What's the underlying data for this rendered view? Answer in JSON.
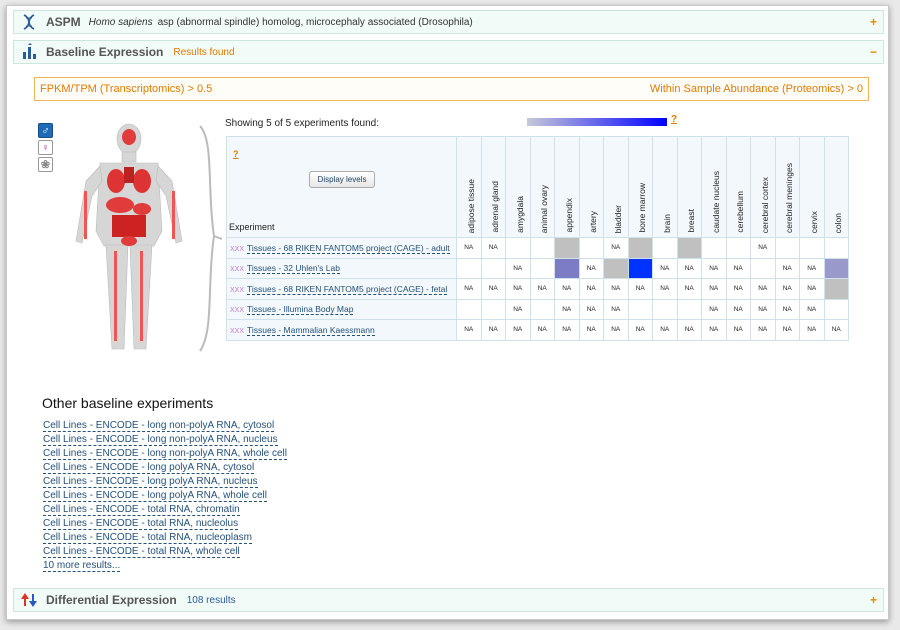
{
  "gene_header": {
    "gene": "ASPM",
    "species": "Homo sapiens",
    "description": "asp (abnormal spindle) homolog, microcephaly associated (Drosophila)",
    "toggle": "+"
  },
  "baseline_header": {
    "title": "Baseline Expression",
    "status": "Results found",
    "toggle": "−"
  },
  "filters": {
    "left": "FPKM/TPM (Transcriptomics) > 0.5",
    "right": "Within Sample Abundance (Proteomics) > 0"
  },
  "gender_buttons": {
    "male": "♂",
    "female": "♀",
    "brain": "❀"
  },
  "showing_text": "Showing 5 of 5 experiments found:",
  "gradient_help": "?",
  "heatmap": {
    "help": "?",
    "display_levels": "Display levels",
    "experiment_label": "Experiment",
    "columns": [
      "adipose tissue",
      "adrenal gland",
      "amygdala",
      "animal ovary",
      "appendix",
      "artery",
      "bladder",
      "bone marrow",
      "brain",
      "breast",
      "caudate nucleus",
      "cerebellum",
      "cerebral cortex",
      "cerebral meninges",
      "cervix",
      "colon"
    ],
    "rows": [
      {
        "marker": "XXX",
        "label": "Tissues - 68 RIKEN FANTOM5 project (CAGE) - adult",
        "cells": [
          "NA",
          "NA",
          "",
          "",
          "gray",
          "",
          "NA",
          "gray",
          "",
          "gray",
          "",
          "",
          "NA",
          "",
          "",
          ""
        ]
      },
      {
        "marker": "XXX",
        "label": "Tissues - 32 Uhlen's Lab",
        "cells": [
          "",
          "",
          "NA",
          "",
          "purple",
          "NA",
          "gray",
          "blue",
          "NA",
          "NA",
          "NA",
          "NA",
          "",
          "NA",
          "NA",
          "lavender"
        ]
      },
      {
        "marker": "XXX",
        "label": "Tissues - 68 RIKEN FANTOM5 project (CAGE) - fetal",
        "cells": [
          "NA",
          "NA",
          "NA",
          "NA",
          "NA",
          "NA",
          "NA",
          "NA",
          "NA",
          "NA",
          "NA",
          "NA",
          "NA",
          "NA",
          "NA",
          "gray"
        ]
      },
      {
        "marker": "XXX",
        "label": "Tissues - Illumina Body Map",
        "cells": [
          "",
          "",
          "NA",
          "",
          "NA",
          "NA",
          "NA",
          "",
          "",
          "",
          "NA",
          "NA",
          "NA",
          "NA",
          "NA",
          ""
        ]
      },
      {
        "marker": "XXX",
        "label": "Tissues - Mammalian Kaessmann",
        "cells": [
          "NA",
          "NA",
          "NA",
          "NA",
          "NA",
          "NA",
          "NA",
          "NA",
          "NA",
          "NA",
          "NA",
          "NA",
          "NA",
          "NA",
          "NA",
          "NA"
        ]
      }
    ]
  },
  "other_baseline": {
    "title": "Other baseline experiments",
    "items": [
      "Cell Lines - ENCODE - long non-polyA RNA, cytosol",
      "Cell Lines - ENCODE - long non-polyA RNA, nucleus",
      "Cell Lines - ENCODE - long non-polyA RNA, whole cell",
      "Cell Lines - ENCODE - long polyA RNA, cytosol",
      "Cell Lines - ENCODE - long polyA RNA, nucleus",
      "Cell Lines - ENCODE - long polyA RNA, whole cell",
      "Cell Lines - ENCODE - total RNA, chromatin",
      "Cell Lines - ENCODE - total RNA, nucleolus",
      "Cell Lines - ENCODE - total RNA, nucleoplasm",
      "Cell Lines - ENCODE - total RNA, whole cell",
      "10 more results..."
    ]
  },
  "differential_header": {
    "title": "Differential Expression",
    "count": "108 results",
    "toggle": "+"
  },
  "colors": {
    "accent_orange": "#e07b00",
    "header_bg": "#f1fbf7",
    "link_blue": "#25507a",
    "heat_high": "#0033ff",
    "heat_mid": "#7b7bc6",
    "heat_low": "#c0c0c0"
  }
}
